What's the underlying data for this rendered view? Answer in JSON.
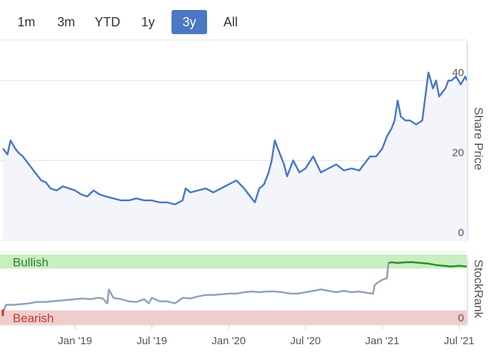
{
  "range_buttons": [
    {
      "label": "1m",
      "active": false
    },
    {
      "label": "3m",
      "active": false
    },
    {
      "label": "YTD",
      "active": false
    },
    {
      "label": "1y",
      "active": false
    },
    {
      "label": "3y",
      "active": true
    },
    {
      "label": "All",
      "active": false
    }
  ],
  "colors": {
    "price_line": "#4a78c2",
    "price_fill": "#f3f5fb",
    "rank_line": "#8fa0b8",
    "rank_bullish_line": "#2e8b2e",
    "bullish_band": "#c9eec0",
    "bearish_band": "#f0cccc",
    "bullish_text": "#2e7d2e",
    "bearish_text": "#c0392b",
    "button_active": "#4a78c2"
  },
  "chart_data": [
    {
      "type": "line",
      "title": "",
      "ylabel": "Share Price",
      "ylim": [
        0,
        50
      ],
      "yticks": [
        0,
        20,
        40
      ],
      "x_ticks": [
        "Jan '19",
        "Jul '19",
        "Jan '20",
        "Jul '20",
        "Jan '21",
        "Jul '21"
      ],
      "x_tick_dates": [
        2019.0,
        2019.5,
        2020.0,
        2020.5,
        2021.0,
        2021.5
      ],
      "xlim": [
        2018.53,
        2021.55
      ],
      "series": [
        {
          "name": "Share Price",
          "x": [
            2018.53,
            2018.56,
            2018.58,
            2018.61,
            2018.63,
            2018.66,
            2018.7,
            2018.74,
            2018.78,
            2018.81,
            2018.84,
            2018.88,
            2018.92,
            2018.96,
            2019.0,
            2019.04,
            2019.08,
            2019.12,
            2019.16,
            2019.2,
            2019.25,
            2019.3,
            2019.35,
            2019.4,
            2019.45,
            2019.5,
            2019.55,
            2019.6,
            2019.65,
            2019.7,
            2019.72,
            2019.75,
            2019.8,
            2019.85,
            2019.9,
            2019.95,
            2020.0,
            2020.05,
            2020.1,
            2020.14,
            2020.17,
            2020.2,
            2020.23,
            2020.26,
            2020.28,
            2020.3,
            2020.33,
            2020.36,
            2020.38,
            2020.42,
            2020.46,
            2020.5,
            2020.55,
            2020.6,
            2020.65,
            2020.7,
            2020.75,
            2020.8,
            2020.85,
            2020.88,
            2020.92,
            2020.96,
            2021.0,
            2021.03,
            2021.06,
            2021.08,
            2021.1,
            2021.12,
            2021.15,
            2021.18,
            2021.22,
            2021.26,
            2021.3,
            2021.33,
            2021.35,
            2021.37,
            2021.39,
            2021.41,
            2021.43,
            2021.45,
            2021.48,
            2021.51,
            2021.54,
            2021.55
          ],
          "values": [
            23,
            21.5,
            25,
            23,
            22,
            21,
            19,
            17,
            15,
            14.5,
            13,
            12.5,
            13.5,
            13,
            12.5,
            11.5,
            11,
            12.5,
            11.5,
            11,
            10.5,
            10,
            10,
            10.5,
            10,
            10,
            9.5,
            9.5,
            9,
            10,
            13,
            12,
            12.5,
            13,
            12,
            13,
            14,
            15,
            13,
            11,
            9.5,
            13,
            14,
            17,
            20,
            25,
            22,
            19,
            16,
            20,
            17,
            18,
            21,
            17,
            18,
            19,
            17.5,
            18,
            17.5,
            19,
            21,
            21,
            23,
            26,
            28,
            30,
            35,
            31,
            30,
            30,
            29,
            30,
            42,
            38,
            40,
            36,
            37,
            38,
            40,
            40,
            41,
            39,
            41,
            40
          ]
        }
      ]
    },
    {
      "type": "line",
      "title": "",
      "ylabel": "StockRank",
      "ylim": [
        0,
        100
      ],
      "yticks": [
        0
      ],
      "xlim": [
        2018.53,
        2021.55
      ],
      "bands": [
        {
          "name": "Bullish",
          "from": 80,
          "to": 100
        },
        {
          "name": "Bearish",
          "from": 0,
          "to": 20
        }
      ],
      "series": [
        {
          "name": "StockRank",
          "bullish_from": 2021.04,
          "x": [
            2018.53,
            2018.55,
            2018.6,
            2018.65,
            2018.7,
            2018.75,
            2018.8,
            2018.85,
            2018.9,
            2018.95,
            2019.0,
            2019.05,
            2019.1,
            2019.15,
            2019.18,
            2019.21,
            2019.22,
            2019.25,
            2019.3,
            2019.35,
            2019.4,
            2019.45,
            2019.48,
            2019.5,
            2019.55,
            2019.6,
            2019.65,
            2019.7,
            2019.75,
            2019.8,
            2019.85,
            2019.9,
            2019.95,
            2020.0,
            2020.05,
            2020.1,
            2020.15,
            2020.2,
            2020.25,
            2020.3,
            2020.35,
            2020.4,
            2020.45,
            2020.5,
            2020.55,
            2020.6,
            2020.65,
            2020.7,
            2020.75,
            2020.8,
            2020.85,
            2020.9,
            2020.94,
            2020.95,
            2020.97,
            2021.0,
            2021.03,
            2021.04,
            2021.06,
            2021.1,
            2021.15,
            2021.2,
            2021.25,
            2021.3,
            2021.35,
            2021.4,
            2021.45,
            2021.5,
            2021.55
          ],
          "values": [
            16,
            28,
            28,
            29,
            30,
            32,
            32,
            33,
            34,
            35,
            36,
            37,
            36,
            38,
            37,
            30,
            50,
            38,
            36,
            33,
            32,
            36,
            30,
            38,
            33,
            33,
            30,
            38,
            37,
            40,
            42,
            42,
            43,
            44,
            44,
            46,
            47,
            46,
            47,
            47,
            46,
            44,
            44,
            46,
            48,
            50,
            48,
            46,
            48,
            46,
            47,
            45,
            44,
            56,
            60,
            64,
            66,
            88,
            89,
            88,
            89,
            89,
            88,
            87,
            85,
            84,
            83,
            84,
            83
          ]
        }
      ]
    }
  ]
}
